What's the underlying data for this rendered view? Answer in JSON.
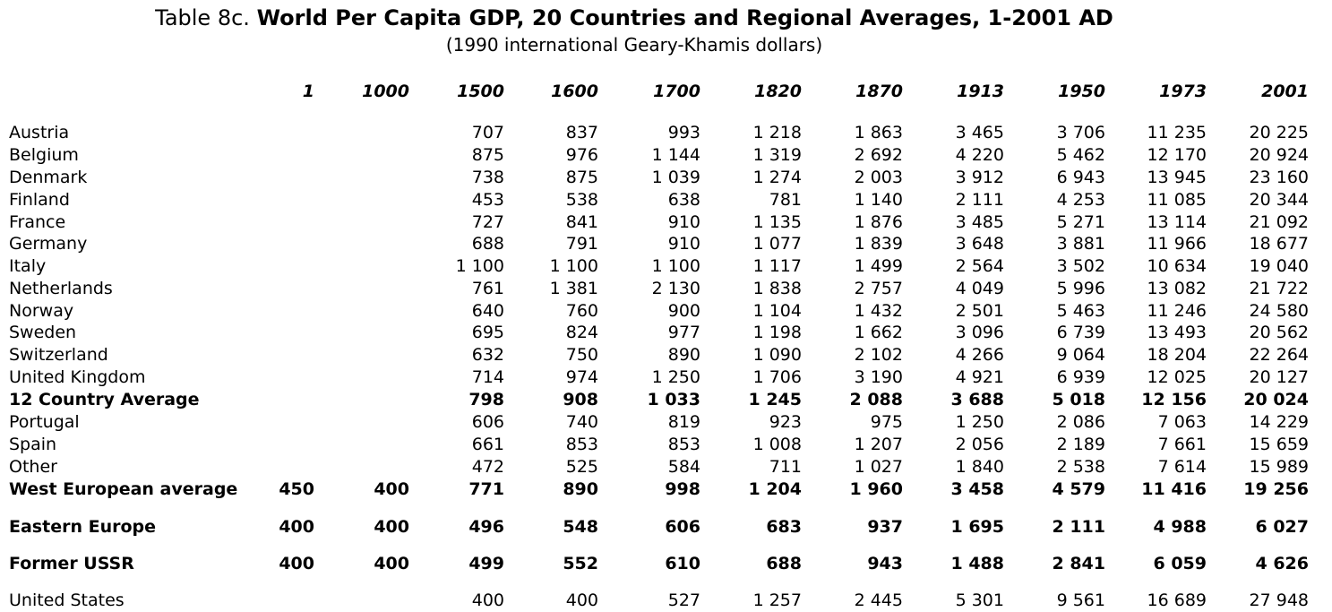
{
  "title": {
    "prefix": "Table 8c.",
    "main": "World Per Capita GDP, 20 Countries and Regional Averages, 1-2001 AD",
    "subtitle": "(1990 international Geary-Khamis dollars)"
  },
  "columns": [
    "1",
    "1000",
    "1500",
    "1600",
    "1700",
    "1820",
    "1870",
    "1913",
    "1950",
    "1973",
    "2001"
  ],
  "rows": [
    {
      "label": "Austria",
      "bold": false,
      "values": [
        "",
        "",
        "707",
        "837",
        "993",
        "1 218",
        "1 863",
        "3 465",
        "3 706",
        "11 235",
        "20 225"
      ]
    },
    {
      "label": "Belgium",
      "bold": false,
      "values": [
        "",
        "",
        "875",
        "976",
        "1 144",
        "1 319",
        "2 692",
        "4 220",
        "5 462",
        "12 170",
        "20 924"
      ]
    },
    {
      "label": "Denmark",
      "bold": false,
      "values": [
        "",
        "",
        "738",
        "875",
        "1 039",
        "1 274",
        "2 003",
        "3 912",
        "6 943",
        "13 945",
        "23 160"
      ]
    },
    {
      "label": "Finland",
      "bold": false,
      "values": [
        "",
        "",
        "453",
        "538",
        "638",
        "781",
        "1 140",
        "2 111",
        "4 253",
        "11 085",
        "20 344"
      ]
    },
    {
      "label": "France",
      "bold": false,
      "values": [
        "",
        "",
        "727",
        "841",
        "910",
        "1 135",
        "1 876",
        "3 485",
        "5 271",
        "13 114",
        "21 092"
      ]
    },
    {
      "label": "Germany",
      "bold": false,
      "values": [
        "",
        "",
        "688",
        "791",
        "910",
        "1 077",
        "1 839",
        "3 648",
        "3 881",
        "11 966",
        "18 677"
      ]
    },
    {
      "label": "Italy",
      "bold": false,
      "values": [
        "",
        "",
        "1 100",
        "1 100",
        "1 100",
        "1 117",
        "1 499",
        "2 564",
        "3 502",
        "10 634",
        "19 040"
      ]
    },
    {
      "label": "Netherlands",
      "bold": false,
      "values": [
        "",
        "",
        "761",
        "1 381",
        "2 130",
        "1 838",
        "2 757",
        "4 049",
        "5 996",
        "13 082",
        "21 722"
      ]
    },
    {
      "label": "Norway",
      "bold": false,
      "values": [
        "",
        "",
        "640",
        "760",
        "900",
        "1 104",
        "1 432",
        "2 501",
        "5 463",
        "11 246",
        "24 580"
      ]
    },
    {
      "label": "Sweden",
      "bold": false,
      "values": [
        "",
        "",
        "695",
        "824",
        "977",
        "1 198",
        "1 662",
        "3 096",
        "6 739",
        "13 493",
        "20 562"
      ]
    },
    {
      "label": "Switzerland",
      "bold": false,
      "values": [
        "",
        "",
        "632",
        "750",
        "890",
        "1 090",
        "2 102",
        "4 266",
        "9 064",
        "18 204",
        "22 264"
      ]
    },
    {
      "label": "United Kingdom",
      "bold": false,
      "values": [
        "",
        "",
        "714",
        "974",
        "1 250",
        "1 706",
        "3 190",
        "4 921",
        "6 939",
        "12 025",
        "20 127"
      ]
    },
    {
      "label": "12 Country Average",
      "bold": true,
      "values": [
        "",
        "",
        "798",
        "908",
        "1 033",
        "1 245",
        "2 088",
        "3 688",
        "5 018",
        "12 156",
        "20 024"
      ]
    },
    {
      "label": "Portugal",
      "bold": false,
      "values": [
        "",
        "",
        "606",
        "740",
        "819",
        "923",
        "975",
        "1 250",
        "2 086",
        "7 063",
        "14 229"
      ]
    },
    {
      "label": "Spain",
      "bold": false,
      "values": [
        "",
        "",
        "661",
        "853",
        "853",
        "1 008",
        "1 207",
        "2 056",
        "2 189",
        "7 661",
        "15 659"
      ]
    },
    {
      "label": "Other",
      "bold": false,
      "values": [
        "",
        "",
        "472",
        "525",
        "584",
        "711",
        "1 027",
        "1 840",
        "2 538",
        "7 614",
        "15 989"
      ]
    },
    {
      "label": "West European average",
      "bold": true,
      "values": [
        "450",
        "400",
        "771",
        "890",
        "998",
        "1 204",
        "1 960",
        "3 458",
        "4 579",
        "11 416",
        "19 256"
      ]
    },
    {
      "label": "Eastern Europe",
      "bold": true,
      "values": [
        "400",
        "400",
        "496",
        "548",
        "606",
        "683",
        "937",
        "1 695",
        "2 111",
        "4 988",
        "6 027"
      ]
    },
    {
      "label": "Former USSR",
      "bold": true,
      "values": [
        "400",
        "400",
        "499",
        "552",
        "610",
        "688",
        "943",
        "1 488",
        "2 841",
        "6 059",
        "4 626"
      ]
    },
    {
      "label": "United States",
      "bold": false,
      "values": [
        "",
        "",
        "400",
        "400",
        "527",
        "1 257",
        "2 445",
        "5 301",
        "9 561",
        "16 689",
        "27 948"
      ]
    }
  ]
}
